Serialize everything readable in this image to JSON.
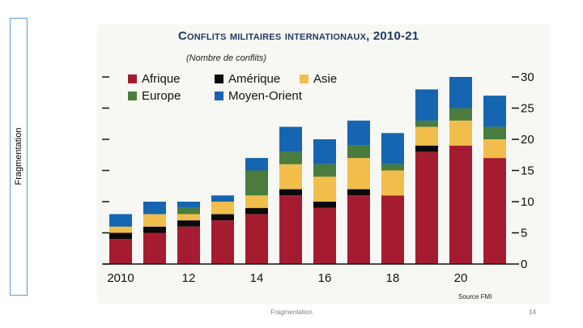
{
  "slide": {
    "side_label": "Fragmentation",
    "footer_center": "Fragmentation",
    "page_number": "14"
  },
  "chart_data": {
    "type": "bar",
    "stacked": true,
    "title": "Conflits militaires internationaux, 2010-21",
    "subtitle": "(Nombre de conflits)",
    "source": "Source FMI",
    "categories": [
      "2010",
      "2011",
      "2012",
      "2013",
      "2014",
      "2015",
      "2016",
      "2017",
      "2018",
      "2019",
      "2020",
      "2021"
    ],
    "x_tick_labels": [
      {
        "category": "2010",
        "label": "2010"
      },
      {
        "category": "2012",
        "label": "12"
      },
      {
        "category": "2014",
        "label": "14"
      },
      {
        "category": "2016",
        "label": "16"
      },
      {
        "category": "2018",
        "label": "18"
      },
      {
        "category": "2020",
        "label": "20"
      }
    ],
    "y_ticks": [
      0,
      5,
      10,
      15,
      20,
      25,
      30
    ],
    "ylim": [
      0,
      30
    ],
    "y_axis_side": "right",
    "legend_position": "top-left",
    "series": [
      {
        "name": "Afrique",
        "color": "#a51c30",
        "values": [
          4,
          5,
          6,
          7,
          8,
          11,
          9,
          11,
          11,
          18,
          19,
          17
        ]
      },
      {
        "name": "Amérique",
        "color": "#0a0a0a",
        "values": [
          1,
          1,
          1,
          1,
          1,
          1,
          1,
          1,
          0,
          1,
          0,
          0
        ]
      },
      {
        "name": "Asie",
        "color": "#f2be4b",
        "values": [
          1,
          2,
          1,
          2,
          2,
          4,
          4,
          5,
          4,
          3,
          4,
          3
        ]
      },
      {
        "name": "Europe",
        "color": "#4a7c3d",
        "values": [
          0,
          0,
          1,
          0,
          4,
          2,
          2,
          2,
          1,
          1,
          2,
          2
        ]
      },
      {
        "name": "Moyen-Orient",
        "color": "#1565b0",
        "values": [
          2,
          2,
          1,
          1,
          2,
          4,
          4,
          4,
          5,
          5,
          5,
          5
        ]
      }
    ]
  }
}
